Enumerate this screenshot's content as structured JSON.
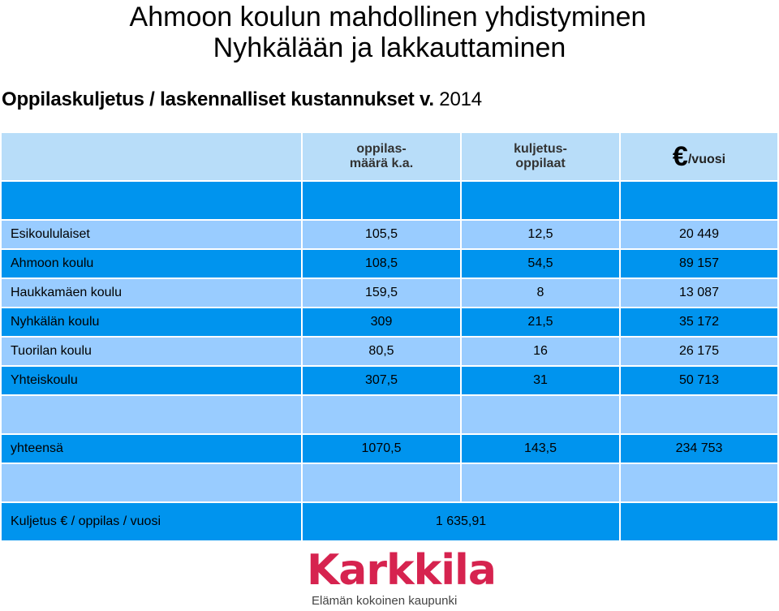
{
  "title": {
    "line1": "Ahmoon koulun mahdollinen yhdistyminen",
    "line2": "Nyhkälään ja lakkauttaminen"
  },
  "subtitle": {
    "text": "Oppilaskuljetus / laskennalliset kustannukset v. ",
    "year": "2014"
  },
  "table": {
    "headers": {
      "c1": [
        "oppilas-",
        "määrä k.a."
      ],
      "c2": [
        "kuljetus-",
        "oppilaat"
      ],
      "c3_symbol": "€",
      "c3_text": "/vuosi"
    },
    "rows": [
      {
        "name": "Esikoululaiset",
        "oppilasmaara": "105,5",
        "kuljetusoppilaat": "12,5",
        "euro": "20 449"
      },
      {
        "name": "Ahmoon koulu",
        "oppilasmaara": "108,5",
        "kuljetusoppilaat": "54,5",
        "euro": "89 157"
      },
      {
        "name": "Haukkamäen koulu",
        "oppilasmaara": "159,5",
        "kuljetusoppilaat": "8",
        "euro": "13 087"
      },
      {
        "name": "Nyhkälän koulu",
        "oppilasmaara": "309",
        "kuljetusoppilaat": "21,5",
        "euro": "35 172"
      },
      {
        "name": "Tuorilan koulu",
        "oppilasmaara": "80,5",
        "kuljetusoppilaat": "16",
        "euro": "26 175"
      },
      {
        "name": "Yhteiskoulu",
        "oppilasmaara": "307,5",
        "kuljetusoppilaat": "31",
        "euro": "50 713"
      }
    ],
    "total": {
      "name": "yhteensä",
      "oppilasmaara": "1070,5",
      "kuljetusoppilaat": "143,5",
      "euro": "234 753"
    },
    "per_pupil": {
      "label": "Kuljetus € / oppilas / vuosi",
      "value": "1 635,91"
    }
  },
  "logo": {
    "word": "Karkkila",
    "tagline": "Elämän kokoinen kaupunki"
  },
  "colors": {
    "header_bg": "#b8ddf9",
    "dark_blue": "#0094ee",
    "light_blue": "#99ccff",
    "logo_red": "#d6234f"
  }
}
